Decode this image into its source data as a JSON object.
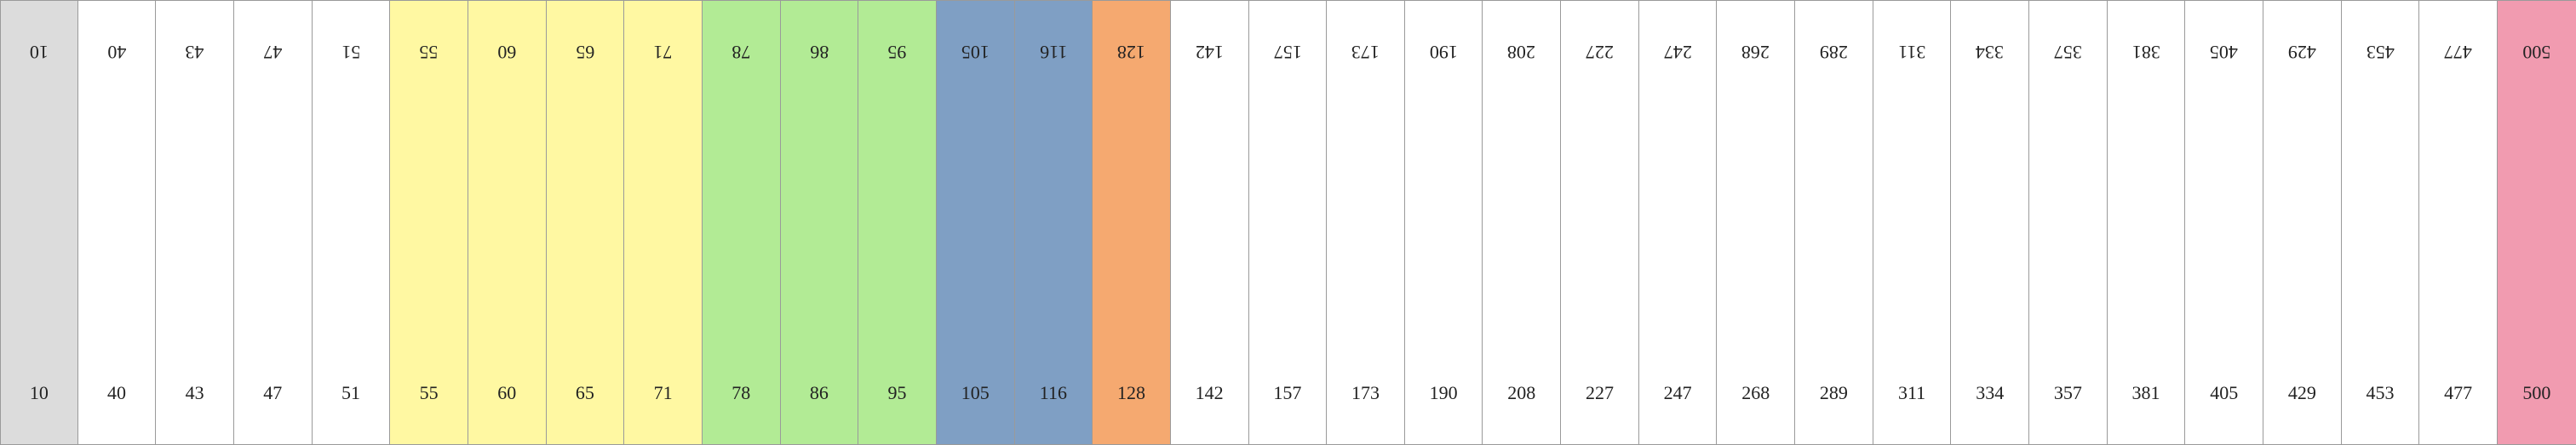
{
  "strip": {
    "cells": [
      {
        "value": "10",
        "color": "#dcdcdc"
      },
      {
        "value": "40",
        "color": "#ffffff"
      },
      {
        "value": "43",
        "color": "#ffffff"
      },
      {
        "value": "47",
        "color": "#ffffff"
      },
      {
        "value": "51",
        "color": "#ffffff"
      },
      {
        "value": "55",
        "color": "#fff8a2"
      },
      {
        "value": "60",
        "color": "#fff8a2"
      },
      {
        "value": "65",
        "color": "#fff8a2"
      },
      {
        "value": "71",
        "color": "#fff8a2"
      },
      {
        "value": "78",
        "color": "#b2eb95"
      },
      {
        "value": "86",
        "color": "#b2eb95"
      },
      {
        "value": "95",
        "color": "#b2eb95"
      },
      {
        "value": "105",
        "color": "#7f9fc4"
      },
      {
        "value": "116",
        "color": "#7f9fc4"
      },
      {
        "value": "128",
        "color": "#f5a970"
      },
      {
        "value": "142",
        "color": "#ffffff"
      },
      {
        "value": "157",
        "color": "#ffffff"
      },
      {
        "value": "173",
        "color": "#ffffff"
      },
      {
        "value": "190",
        "color": "#ffffff"
      },
      {
        "value": "208",
        "color": "#ffffff"
      },
      {
        "value": "227",
        "color": "#ffffff"
      },
      {
        "value": "247",
        "color": "#ffffff"
      },
      {
        "value": "268",
        "color": "#ffffff"
      },
      {
        "value": "289",
        "color": "#ffffff"
      },
      {
        "value": "311",
        "color": "#ffffff"
      },
      {
        "value": "334",
        "color": "#ffffff"
      },
      {
        "value": "357",
        "color": "#ffffff"
      },
      {
        "value": "381",
        "color": "#ffffff"
      },
      {
        "value": "405",
        "color": "#ffffff"
      },
      {
        "value": "429",
        "color": "#ffffff"
      },
      {
        "value": "453",
        "color": "#ffffff"
      },
      {
        "value": "477",
        "color": "#ffffff"
      },
      {
        "value": "500",
        "color": "#f19bb0"
      }
    ]
  }
}
